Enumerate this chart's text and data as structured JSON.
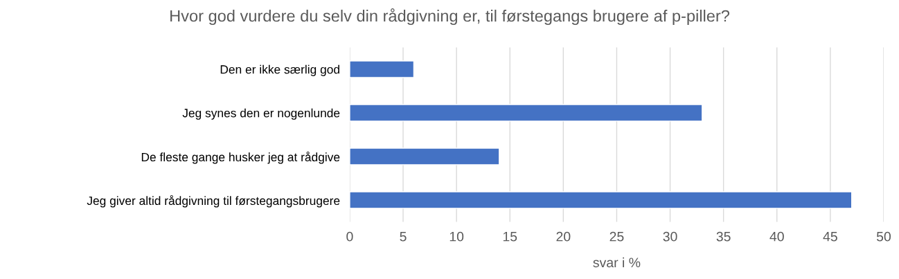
{
  "chart_data": {
    "type": "bar",
    "orientation": "horizontal",
    "title": "Hvor god vurdere du selv din rådgivning er, til førstegangs brugere af p-piller?",
    "xlabel": "svar i %",
    "categories": [
      "Den er ikke særlig god",
      "Jeg synes den er nogenlunde",
      "De fleste gange husker jeg at rådgive",
      "Jeg giver altid rådgivning til førstegangsbrugere"
    ],
    "values": [
      6,
      33,
      14,
      47
    ],
    "color": "#4472c4",
    "xlim": [
      0,
      50
    ],
    "xticks": [
      0,
      5,
      10,
      15,
      20,
      25,
      30,
      35,
      40,
      45,
      50
    ],
    "grid": "x"
  }
}
